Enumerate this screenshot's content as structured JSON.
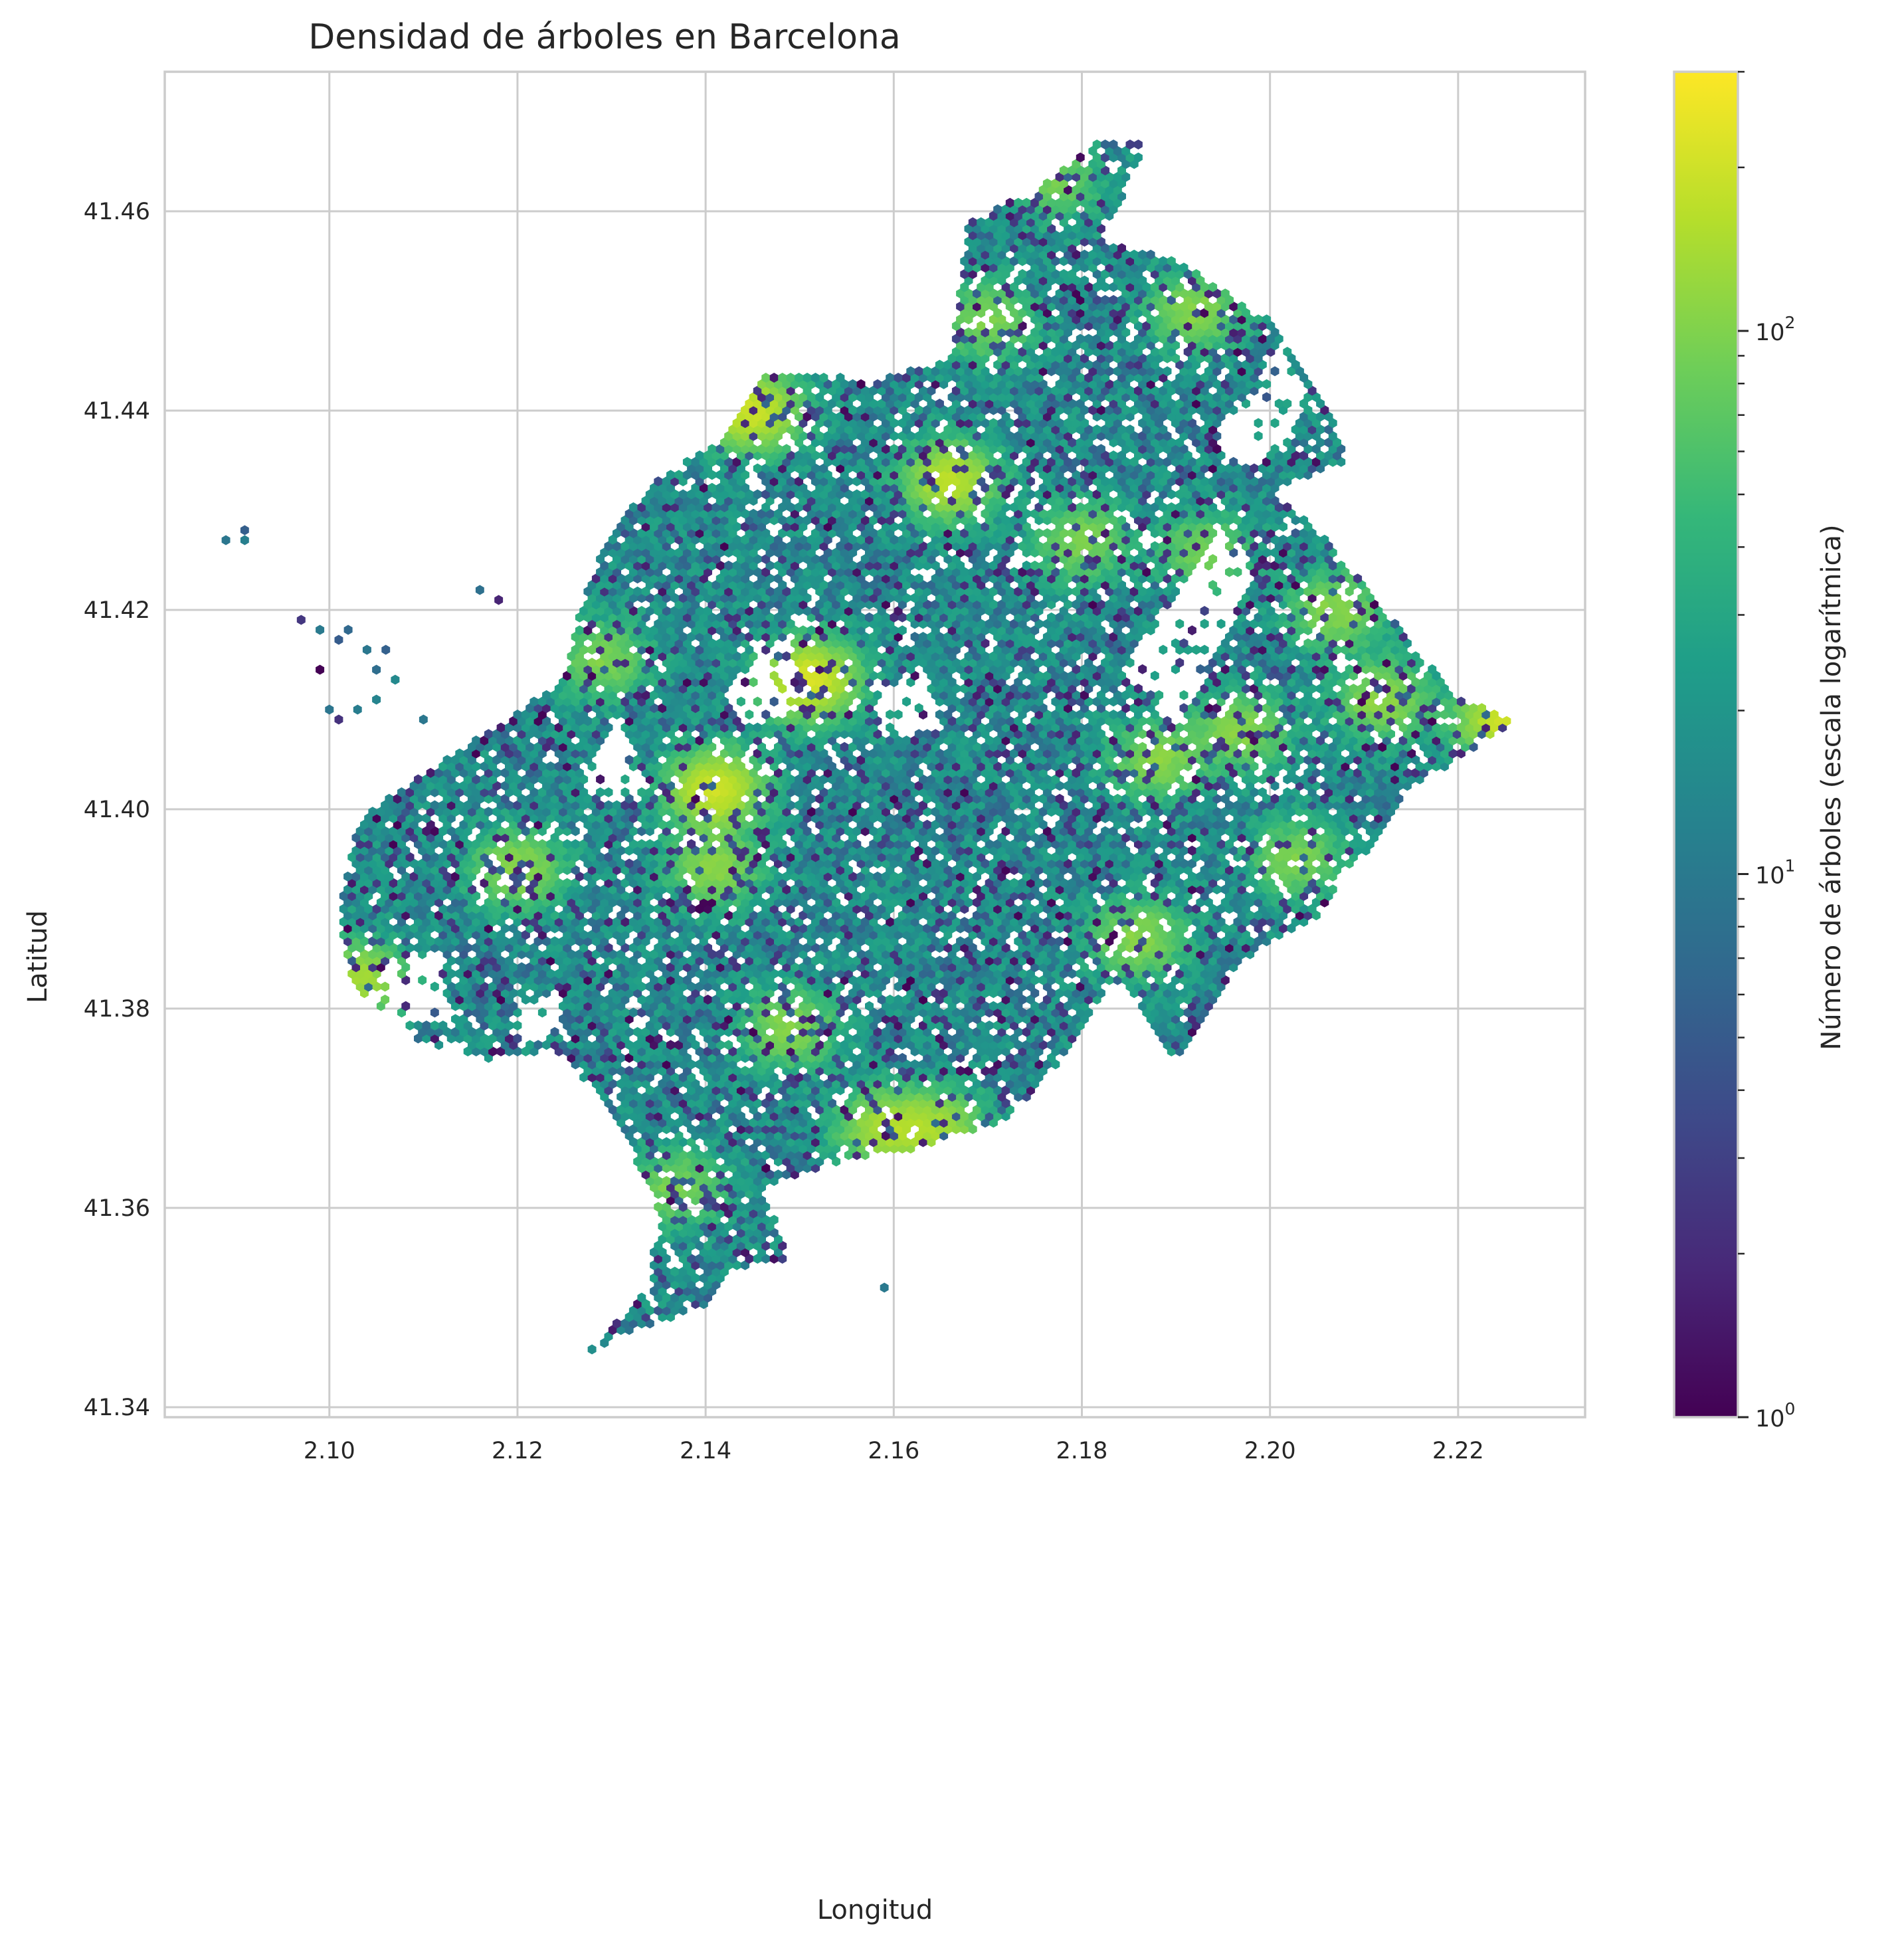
{
  "chart_data": {
    "type": "heatmap",
    "subtype": "hexbin",
    "title": "Densidad de árboles en Barcelona",
    "xlabel": "Longitud",
    "ylabel": "Latitud",
    "xlim": [
      2.0825,
      2.2335
    ],
    "ylim": [
      41.339,
      41.474
    ],
    "xticks": [
      2.1,
      2.12,
      2.14,
      2.16,
      2.18,
      2.2,
      2.22
    ],
    "xtick_labels": [
      "2.10",
      "2.12",
      "2.14",
      "2.16",
      "2.18",
      "2.20",
      "2.22"
    ],
    "yticks": [
      41.34,
      41.36,
      41.38,
      41.4,
      41.42,
      41.44,
      41.46
    ],
    "ytick_labels": [
      "41.34",
      "41.36",
      "41.38",
      "41.40",
      "41.42",
      "41.44",
      "41.46"
    ],
    "grid": true,
    "colormap": "viridis",
    "colorbar": {
      "label": "Número de árboles (escala logarítmica)",
      "scale": "log",
      "range": [
        1,
        300
      ],
      "ticks": [
        1,
        10,
        100
      ],
      "tick_labels": [
        {
          "base": "10",
          "exp": "0"
        },
        {
          "base": "10",
          "exp": "1"
        },
        {
          "base": "10",
          "exp": "2"
        }
      ]
    },
    "data_outline_lonlat": [
      [
        2.127,
        41.345
      ],
      [
        2.133,
        41.348
      ],
      [
        2.14,
        41.35
      ],
      [
        2.143,
        41.354
      ],
      [
        2.149,
        41.355
      ],
      [
        2.146,
        41.362
      ],
      [
        2.155,
        41.365
      ],
      [
        2.163,
        41.366
      ],
      [
        2.172,
        41.369
      ],
      [
        2.178,
        41.375
      ],
      [
        2.184,
        41.383
      ],
      [
        2.19,
        41.375
      ],
      [
        2.197,
        41.385
      ],
      [
        2.205,
        41.389
      ],
      [
        2.215,
        41.402
      ],
      [
        2.226,
        41.409
      ],
      [
        2.22,
        41.411
      ],
      [
        2.214,
        41.418
      ],
      [
        2.206,
        41.427
      ],
      [
        2.2,
        41.432
      ],
      [
        2.208,
        41.435
      ],
      [
        2.206,
        41.441
      ],
      [
        2.2,
        41.449
      ],
      [
        2.19,
        41.455
      ],
      [
        2.182,
        41.457
      ],
      [
        2.187,
        41.467
      ],
      [
        2.182,
        41.467
      ],
      [
        2.175,
        41.462
      ],
      [
        2.168,
        41.459
      ],
      [
        2.166,
        41.445
      ],
      [
        2.158,
        41.443
      ],
      [
        2.146,
        41.444
      ],
      [
        2.142,
        41.437
      ],
      [
        2.136,
        41.434
      ],
      [
        2.13,
        41.428
      ],
      [
        2.127,
        41.421
      ],
      [
        2.125,
        41.413
      ],
      [
        2.114,
        41.406
      ],
      [
        2.103,
        41.399
      ],
      [
        2.101,
        41.39
      ],
      [
        2.102,
        41.383
      ],
      [
        2.109,
        41.377
      ],
      [
        2.117,
        41.375
      ],
      [
        2.124,
        41.376
      ],
      [
        2.13,
        41.37
      ],
      [
        2.135,
        41.36
      ],
      [
        2.134,
        41.352
      ],
      [
        2.127,
        41.345
      ]
    ],
    "empty_zones_lonlat": [
      [
        [
          2.184,
          41.414
        ],
        [
          2.195,
          41.428
        ],
        [
          2.199,
          41.424
        ],
        [
          2.19,
          41.408
        ]
      ],
      [
        [
          2.194,
          41.436
        ],
        [
          2.201,
          41.447
        ],
        [
          2.204,
          41.441
        ],
        [
          2.199,
          41.434
        ]
      ],
      [
        [
          2.105,
          41.384
        ],
        [
          2.112,
          41.386
        ],
        [
          2.113,
          41.379
        ],
        [
          2.106,
          41.378
        ]
      ],
      [
        [
          2.142,
          41.412
        ],
        [
          2.149,
          41.418
        ],
        [
          2.15,
          41.41
        ],
        [
          2.144,
          41.408
        ]
      ],
      [
        [
          2.158,
          41.411
        ],
        [
          2.163,
          41.415
        ],
        [
          2.165,
          41.408
        ],
        [
          2.159,
          41.407
        ]
      ],
      [
        [
          2.119,
          41.379
        ],
        [
          2.124,
          41.382
        ],
        [
          2.125,
          41.377
        ],
        [
          2.12,
          41.376
        ]
      ],
      [
        [
          2.127,
          41.404
        ],
        [
          2.131,
          41.409
        ],
        [
          2.134,
          41.402
        ],
        [
          2.129,
          41.401
        ]
      ]
    ],
    "isolated_points_lonlat": [
      [
        2.089,
        41.427
      ],
      [
        2.091,
        41.428
      ],
      [
        2.091,
        41.427
      ],
      [
        2.116,
        41.422
      ],
      [
        2.118,
        41.421
      ],
      [
        2.097,
        41.419
      ],
      [
        2.099,
        41.418
      ],
      [
        2.101,
        41.417
      ],
      [
        2.102,
        41.418
      ],
      [
        2.104,
        41.416
      ],
      [
        2.105,
        41.414
      ],
      [
        2.106,
        41.416
      ],
      [
        2.107,
        41.413
      ],
      [
        2.105,
        41.411
      ],
      [
        2.099,
        41.414
      ],
      [
        2.1,
        41.41
      ],
      [
        2.103,
        41.41
      ],
      [
        2.101,
        41.409
      ],
      [
        2.11,
        41.409
      ],
      [
        2.159,
        41.352
      ]
    ],
    "hotspots_lonlat": [
      [
        2.145,
        41.44,
        180
      ],
      [
        2.151,
        41.413,
        200
      ],
      [
        2.159,
        41.368,
        120
      ],
      [
        2.165,
        41.368,
        100
      ],
      [
        2.166,
        41.433,
        150
      ],
      [
        2.225,
        41.409,
        180
      ],
      [
        2.141,
        41.402,
        180
      ],
      [
        2.103,
        41.383,
        120
      ],
      [
        2.186,
        41.387,
        90
      ],
      [
        2.192,
        41.45,
        90
      ],
      [
        2.17,
        41.449,
        80
      ],
      [
        2.207,
        41.42,
        90
      ],
      [
        2.12,
        41.394,
        100
      ],
      [
        2.149,
        41.378,
        90
      ],
      [
        2.141,
        41.394,
        90
      ],
      [
        2.177,
        41.463,
        70
      ],
      [
        2.129,
        41.415,
        80
      ],
      [
        2.137,
        41.362,
        80
      ],
      [
        2.212,
        41.411,
        100
      ],
      [
        2.197,
        41.408,
        90
      ],
      [
        2.203,
        41.395,
        80
      ],
      [
        2.18,
        41.427,
        80
      ],
      [
        2.193,
        41.426,
        70
      ],
      [
        2.188,
        41.405,
        90
      ]
    ]
  }
}
